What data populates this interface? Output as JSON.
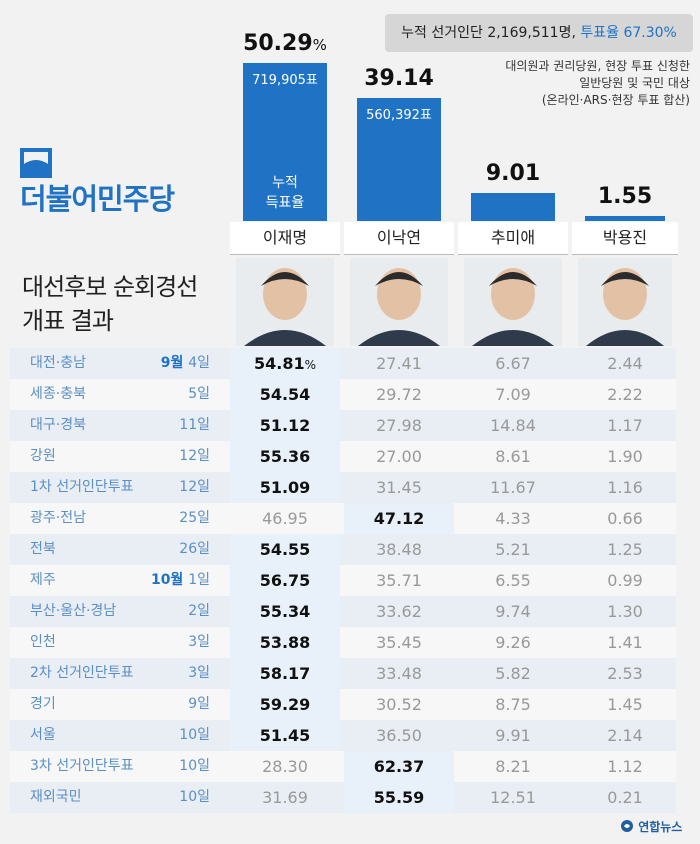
{
  "summary": {
    "label": "누적 선거인단",
    "count": "2,169,511명,",
    "turnout": "투표율 67.30%"
  },
  "note": [
    "대의원과 권리당원, 현장 투표 신청한",
    "일반당원 및 국민 대상",
    "(온라인·ARS·현장 투표 합산)"
  ],
  "party_name": "더불어민주당",
  "title_lines": [
    "대선후보 순회경선",
    "개표 결과"
  ],
  "colors": {
    "accent": "#1f72c4",
    "winner_bg": "#e8f1fa"
  },
  "chart_data": [
    {
      "type": "bar",
      "categories": [
        "이재명",
        "이낙연",
        "추미애",
        "박용진"
      ],
      "values": [
        50.29,
        39.14,
        9.01,
        1.55
      ],
      "value_labels": [
        "50.29",
        "39.14",
        "9.01",
        "1.55"
      ],
      "votes": [
        "719,905표",
        "560,392표",
        "",
        ""
      ],
      "cumulative_label": [
        "누적",
        "득표율"
      ],
      "first_value_unit": "%"
    },
    {
      "type": "table",
      "columns": [
        "이재명",
        "이낙연",
        "추미애",
        "박용진"
      ],
      "rows": [
        {
          "region": "대전·충남",
          "month": "9월",
          "day": "4일",
          "values": [
            "54.81",
            "27.41",
            "6.67",
            "2.44"
          ],
          "winner": 0
        },
        {
          "region": "세종·충북",
          "month": "",
          "day": "5일",
          "values": [
            "54.54",
            "29.72",
            "7.09",
            "2.22"
          ],
          "winner": 0
        },
        {
          "region": "대구·경북",
          "month": "",
          "day": "11일",
          "values": [
            "51.12",
            "27.98",
            "14.84",
            "1.17"
          ],
          "winner": 0
        },
        {
          "region": "강원",
          "month": "",
          "day": "12일",
          "values": [
            "55.36",
            "27.00",
            "8.61",
            "1.90"
          ],
          "winner": 0
        },
        {
          "region": "1차 선거인단투표",
          "month": "",
          "day": "12일",
          "values": [
            "51.09",
            "31.45",
            "11.67",
            "1.16"
          ],
          "winner": 0
        },
        {
          "region": "광주·전남",
          "month": "",
          "day": "25일",
          "values": [
            "46.95",
            "47.12",
            "4.33",
            "0.66"
          ],
          "winner": 1
        },
        {
          "region": "전북",
          "month": "",
          "day": "26일",
          "values": [
            "54.55",
            "38.48",
            "5.21",
            "1.25"
          ],
          "winner": 0
        },
        {
          "region": "제주",
          "month": "10월",
          "day": "1일",
          "values": [
            "56.75",
            "35.71",
            "6.55",
            "0.99"
          ],
          "winner": 0
        },
        {
          "region": "부산·울산·경남",
          "month": "",
          "day": "2일",
          "values": [
            "55.34",
            "33.62",
            "9.74",
            "1.30"
          ],
          "winner": 0
        },
        {
          "region": "인천",
          "month": "",
          "day": "3일",
          "values": [
            "53.88",
            "35.45",
            "9.26",
            "1.41"
          ],
          "winner": 0
        },
        {
          "region": "2차 선거인단투표",
          "month": "",
          "day": "3일",
          "values": [
            "58.17",
            "33.48",
            "5.82",
            "2.53"
          ],
          "winner": 0
        },
        {
          "region": "경기",
          "month": "",
          "day": "9일",
          "values": [
            "59.29",
            "30.52",
            "8.75",
            "1.45"
          ],
          "winner": 0
        },
        {
          "region": "서울",
          "month": "",
          "day": "10일",
          "values": [
            "51.45",
            "36.50",
            "9.91",
            "2.14"
          ],
          "winner": 0
        },
        {
          "region": "3차 선거인단투표",
          "month": "",
          "day": "10일",
          "values": [
            "28.30",
            "62.37",
            "8.21",
            "1.12"
          ],
          "winner": 1
        },
        {
          "region": "재외국민",
          "month": "",
          "day": "10일",
          "values": [
            "31.69",
            "55.59",
            "12.51",
            "0.21"
          ],
          "winner": 1
        }
      ],
      "first_cell_unit": "%"
    }
  ],
  "footer": "연합뉴스"
}
